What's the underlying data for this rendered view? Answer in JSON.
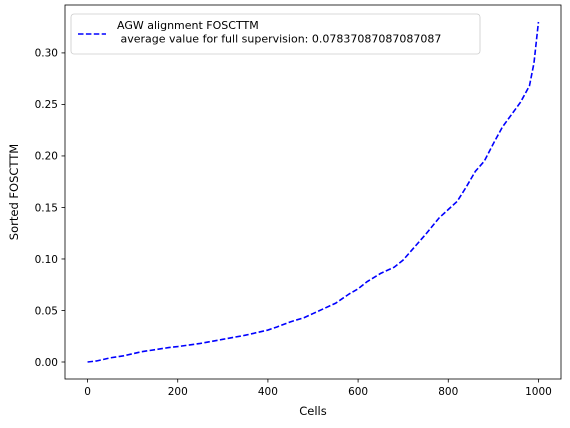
{
  "chart_data": {
    "type": "line",
    "title": "",
    "xlabel": "Cells",
    "ylabel": "Sorted FOSCTTM",
    "xlim": [
      -50,
      1050
    ],
    "ylim": [
      -0.0165,
      0.3465
    ],
    "xticks": [
      0,
      200,
      400,
      600,
      800,
      1000
    ],
    "xtick_labels": [
      "0",
      "200",
      "400",
      "600",
      "800",
      "1000"
    ],
    "yticks": [
      0.0,
      0.05,
      0.1,
      0.15,
      0.2,
      0.25,
      0.3
    ],
    "ytick_labels": [
      "0.00",
      "0.05",
      "0.10",
      "0.15",
      "0.20",
      "0.25",
      "0.30"
    ],
    "grid": false,
    "legend_position": "top-left",
    "series": [
      {
        "name": "AGW alignment FOSCTTM\n average value for full supervision: 0.07837087087087087",
        "legend_lines": [
          "AGW alignment FOSCTTM",
          " average value for full supervision: 0.07837087087087087"
        ],
        "color": "#0000ff",
        "line_style": "dashed",
        "x": [
          0,
          20,
          50,
          80,
          100,
          120,
          150,
          180,
          200,
          250,
          300,
          350,
          400,
          420,
          450,
          480,
          500,
          520,
          550,
          580,
          600,
          620,
          650,
          680,
          700,
          720,
          750,
          780,
          800,
          820,
          840,
          860,
          880,
          900,
          920,
          940,
          960,
          980,
          990,
          1000
        ],
        "y": [
          0.0,
          0.001,
          0.004,
          0.006,
          0.008,
          0.01,
          0.012,
          0.014,
          0.015,
          0.018,
          0.022,
          0.026,
          0.031,
          0.034,
          0.039,
          0.043,
          0.047,
          0.051,
          0.057,
          0.066,
          0.071,
          0.078,
          0.086,
          0.092,
          0.099,
          0.109,
          0.124,
          0.14,
          0.148,
          0.156,
          0.17,
          0.185,
          0.195,
          0.212,
          0.228,
          0.24,
          0.252,
          0.268,
          0.29,
          0.33
        ]
      }
    ]
  }
}
